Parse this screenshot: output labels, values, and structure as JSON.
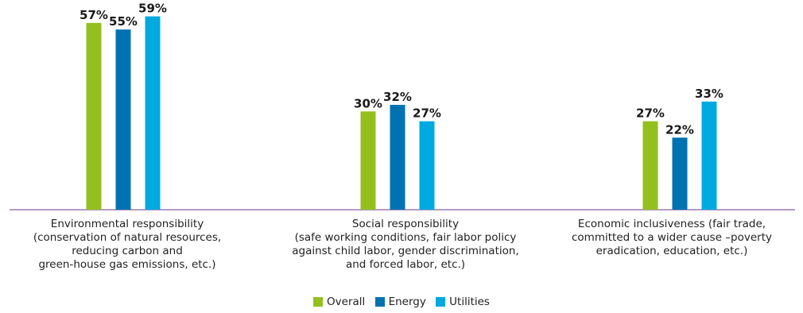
{
  "chart_data": {
    "type": "bar",
    "categories": [
      [
        "Environmental responsibility",
        "(conservation of natural resources,",
        "reducing carbon and",
        "green-house gas emissions, etc.)"
      ],
      [
        "Social responsibility",
        "(safe working conditions, fair labor policy",
        "against child labor, gender discrimination,",
        "and forced labor, etc.)"
      ],
      [
        "Economic inclusiveness (fair trade,",
        "committed to a wider cause –poverty",
        "eradication, education, etc.)"
      ]
    ],
    "series": [
      {
        "name": "Overall",
        "color": "#93c01f",
        "values": [
          57,
          30,
          27
        ]
      },
      {
        "name": "Energy",
        "color": "#0072b1",
        "values": [
          55,
          32,
          22
        ]
      },
      {
        "name": "Utilities",
        "color": "#00a9e0",
        "values": [
          59,
          27,
          33
        ]
      }
    ],
    "value_suffix": "%",
    "ylim": [
      0,
      64
    ],
    "grid": false,
    "legend_position": "bottom-center",
    "axis_color": "#6b3a8a"
  },
  "legend": {
    "overall": "Overall",
    "energy": "Energy",
    "utilities": "Utilities"
  }
}
